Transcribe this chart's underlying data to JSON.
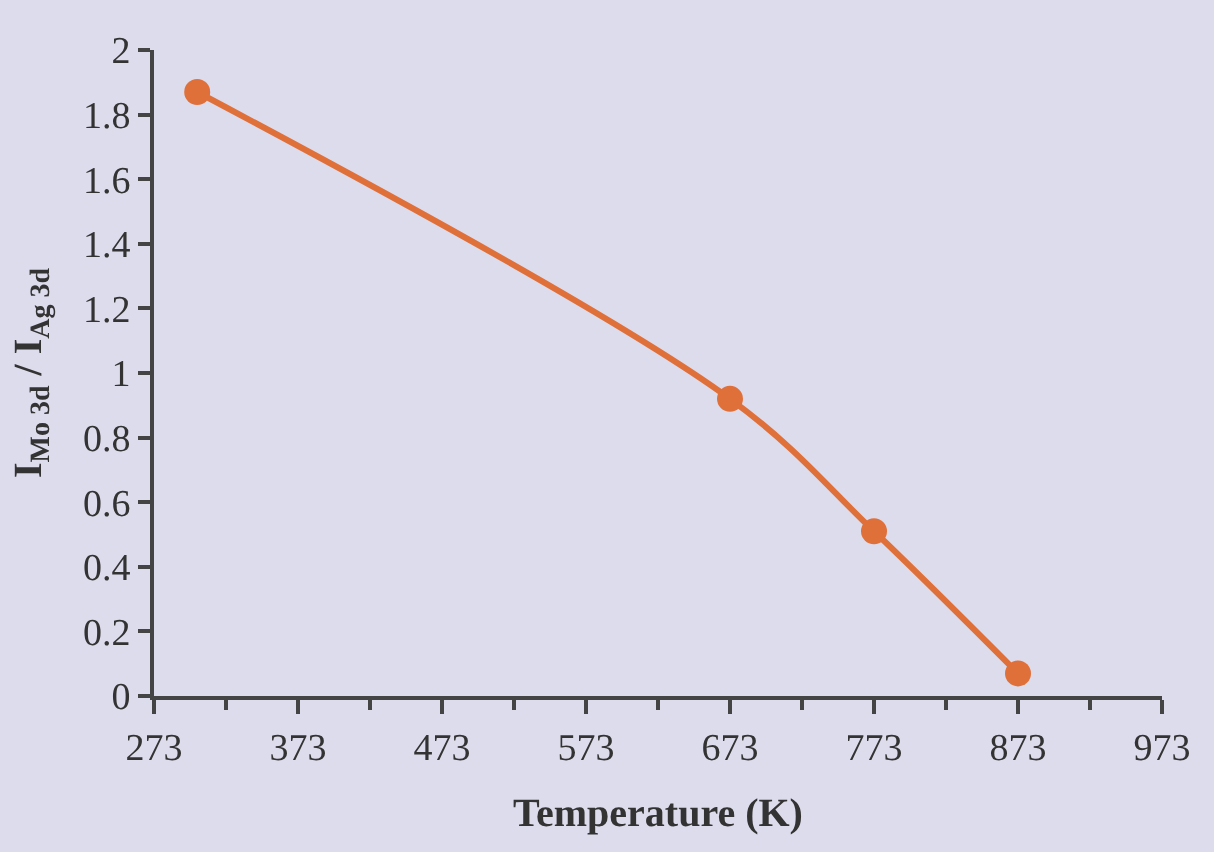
{
  "chart_data": {
    "type": "line",
    "xlabel": "Temperature (K)",
    "ylabel": "I$_{Mo 3d}$ / I$_{Ag 3d}$",
    "x": [
      303,
      673,
      773,
      873
    ],
    "series": [
      {
        "color": "#e0703a",
        "values": [
          1.87,
          0.92,
          0.51,
          0.07
        ]
      }
    ],
    "xlim": [
      273,
      973
    ],
    "xticks": [
      273,
      373,
      473,
      573,
      673,
      773,
      873,
      973
    ],
    "ylim": [
      0,
      2
    ],
    "yticks": [
      0,
      {
        "value": 0.2,
        "label": "0.2"
      },
      {
        "value": 0.4,
        "label": "0.4"
      },
      {
        "value": 0.6,
        "label": "0.6"
      },
      {
        "value": 0.8,
        "label": "0.8"
      },
      1,
      {
        "value": 1.2,
        "label": "1.2"
      },
      {
        "value": 1.4,
        "label": "1.4"
      },
      {
        "value": 1.6,
        "label": "1.6"
      },
      {
        "value": 1.8,
        "label": "1.8"
      },
      2
    ],
    "grid": false,
    "marker": "circle",
    "line_style": "solid"
  }
}
